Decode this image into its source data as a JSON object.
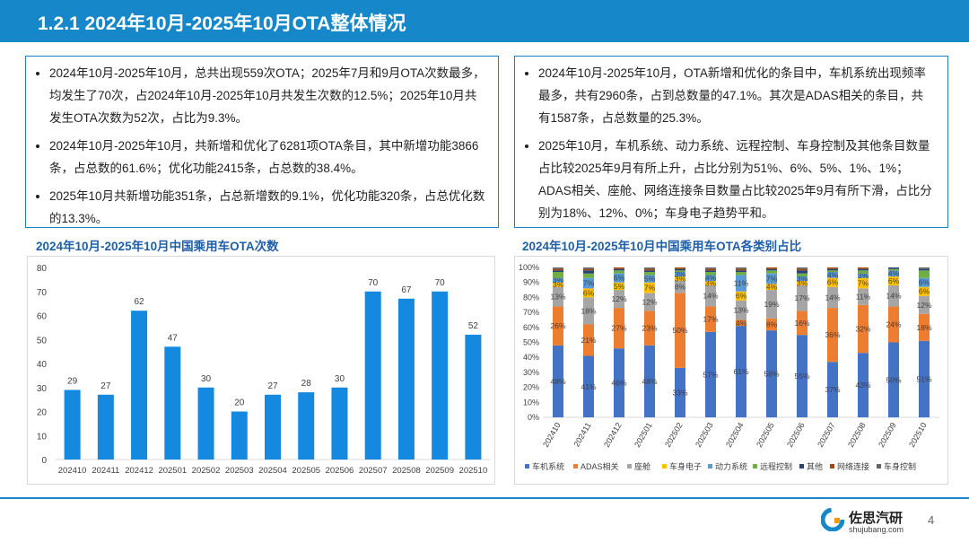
{
  "header": {
    "title": "1.2.1 2024年10月-2025年10月OTA整体情况"
  },
  "left_box": {
    "bullets": [
      "2024年10月-2025年10月，总共出现559次OTA；2025年7月和9月OTA次数最多，均发生了70次，占2024年10月-2025年10月共发生次数的12.5%；2025年10月共发生OTA次数为52次，占比为9.3%。",
      "2024年10月-2025年10月，共新增和优化了6281项OTA条目，其中新增功能3866条，占总数的61.6%；优化功能2415条，占总数的38.4%。",
      "2025年10月共新增功能351条，占总新增数的9.1%，优化功能320条，占总优化数的13.3%。"
    ]
  },
  "right_box": {
    "bullets": [
      "2024年10月-2025年10月，OTA新增和优化的条目中，车机系统出现频率最多，共有2960条，占到总数量的47.1%。其次是ADAS相关的条目，共有1587条，占总数量的25.3%。",
      "2025年10月，车机系统、动力系统、远程控制、车身控制及其他条目数量占比较2025年9月有所上升，占比分别为51%、6%、5%、1%、1%；ADAS相关、座舱、网络连接条目数量占比较2025年9月有所下滑，占比分别为18%、12%、0%；车身电子趋势平和。"
    ]
  },
  "chart_data": [
    {
      "type": "bar",
      "title": "2024年10月-2025年10月中国乘用车OTA次数",
      "categories": [
        "202410",
        "202411",
        "202412",
        "202501",
        "202502",
        "202503",
        "202504",
        "202505",
        "202506",
        "202507",
        "202508",
        "202509",
        "202510"
      ],
      "values": [
        29,
        27,
        62,
        47,
        30,
        20,
        27,
        28,
        30,
        70,
        67,
        70,
        52
      ],
      "color": "#1589e0",
      "ylim": [
        0,
        80
      ],
      "yticks": [
        0,
        10,
        20,
        30,
        40,
        50,
        60,
        70,
        80
      ]
    },
    {
      "type": "stacked_bar",
      "title": "2024年10月-2025年10月中国乘用车OTA各类别占比",
      "categories": [
        "202410",
        "202411",
        "202412",
        "202501",
        "202502",
        "202503",
        "202504",
        "202505",
        "202506",
        "202507",
        "202508",
        "202509",
        "202510"
      ],
      "ylim": [
        0,
        100
      ],
      "yticks": [
        {
          "value": 0,
          "label": "0%"
        },
        {
          "value": 10,
          "label": "10%"
        },
        {
          "value": 20,
          "label": "20%"
        },
        {
          "value": 30,
          "label": "30%"
        },
        {
          "value": 40,
          "label": "40%"
        },
        {
          "value": 50,
          "label": "50%"
        },
        {
          "value": 60,
          "label": "60%"
        },
        {
          "value": 70,
          "label": "70%"
        },
        {
          "value": 80,
          "label": "80%"
        },
        {
          "value": 90,
          "label": "90%"
        },
        {
          "value": 100,
          "label": "100%"
        }
      ],
      "series": [
        {
          "name": "车机系统",
          "color": "#4472c4",
          "values": [
            48,
            41,
            46,
            48,
            33,
            57,
            61,
            58,
            55,
            37,
            43,
            50,
            51
          ],
          "value_labels": [
            "48%",
            "41%",
            "46%",
            "48%",
            "33%",
            "57%",
            "61%",
            "58%",
            "55%",
            "37%",
            "43%",
            "50%",
            "51%"
          ]
        },
        {
          "name": "ADAS相关",
          "color": "#ed7d31",
          "values": [
            26,
            21,
            27,
            23,
            50,
            17,
            4,
            8,
            16,
            36,
            32,
            24,
            18
          ],
          "value_labels": [
            "26%",
            "21%",
            "27%",
            "23%",
            "50%",
            "17%",
            "4%",
            "8%",
            "16%",
            "36%",
            "32%",
            "24%",
            "18%"
          ]
        },
        {
          "name": "座舱",
          "color": "#a5a5a5",
          "values": [
            13,
            18,
            12,
            12,
            8,
            14,
            13,
            19,
            17,
            14,
            11,
            14,
            12
          ],
          "value_labels": [
            "13%",
            "18%",
            "12%",
            "12%",
            "8%",
            "14%",
            "13%",
            "19%",
            "17%",
            "14%",
            "11%",
            "14%",
            "12%"
          ]
        },
        {
          "name": "车身电子",
          "color": "#ffc000",
          "values": [
            3,
            6,
            5,
            7,
            3,
            3,
            6,
            4,
            3,
            6,
            7,
            6,
            6
          ],
          "value_labels": [
            "3%",
            "6%",
            "5%",
            "7%",
            "3%",
            "3%",
            "6%",
            "4%",
            "3%",
            "6%",
            "7%",
            "6%",
            "6%"
          ]
        },
        {
          "name": "动力系统",
          "color": "#5b9bd5",
          "values": [
            3,
            7,
            6,
            5,
            3,
            4,
            11,
            7,
            3,
            4,
            3,
            4,
            6
          ],
          "value_labels": [
            "3%",
            "7%",
            "6%",
            "5%",
            "3%",
            "4%",
            "11%",
            "7%",
            "3%",
            "4%",
            "3%",
            "4%",
            "6%"
          ]
        },
        {
          "name": "远程控制",
          "color": "#70ad47",
          "values": [
            4,
            3,
            2,
            2,
            1,
            2,
            2,
            2,
            2,
            1,
            2,
            1,
            5
          ]
        },
        {
          "name": "其他",
          "color": "#264478",
          "values": [
            1,
            2,
            1,
            1,
            1,
            1,
            1,
            1,
            2,
            1,
            1,
            1,
            1
          ]
        },
        {
          "name": "网络连接",
          "color": "#9e480e",
          "values": [
            1,
            1,
            1,
            1,
            1,
            1,
            1,
            1,
            1,
            1,
            1,
            0,
            0
          ]
        },
        {
          "name": "车身控制",
          "color": "#636363",
          "values": [
            1,
            1,
            0,
            1,
            0,
            1,
            1,
            0,
            1,
            0,
            0,
            0,
            1
          ]
        }
      ]
    }
  ],
  "footer": {
    "brand": "佐思汽研",
    "site": "shujubang.com",
    "page": "4"
  }
}
